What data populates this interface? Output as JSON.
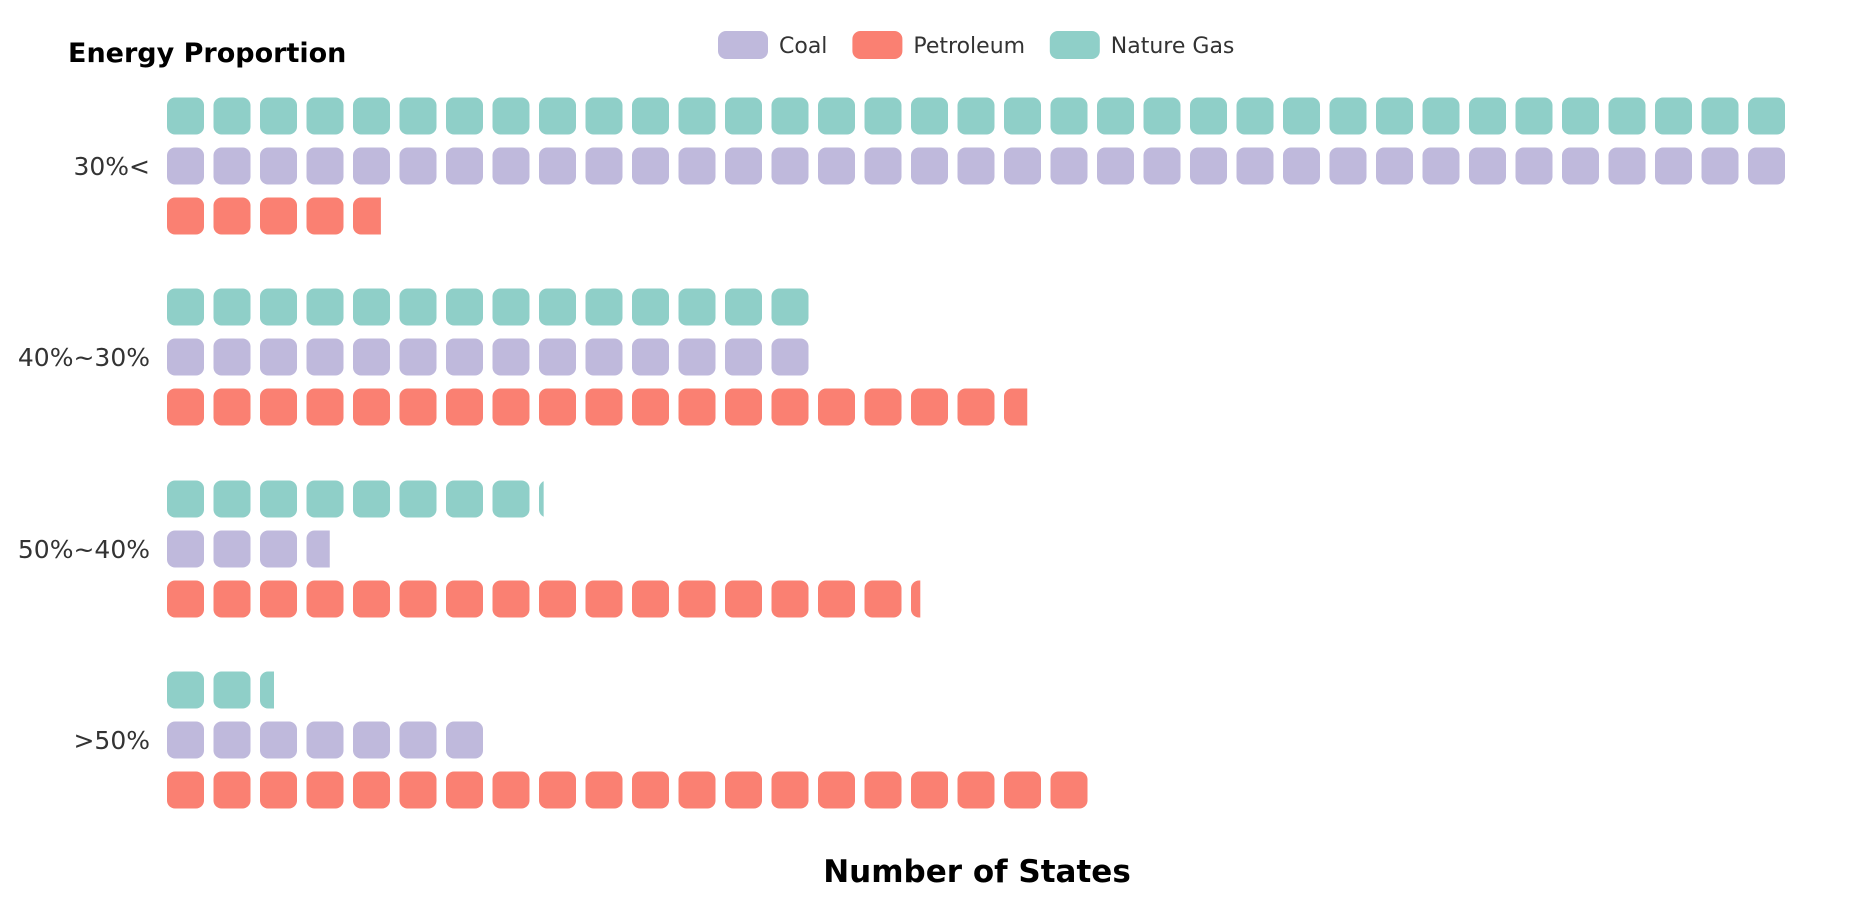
{
  "chart_data": {
    "type": "bar",
    "title": "",
    "ylabel": "Energy Proportion",
    "xlabel": "Number of States",
    "categories": [
      ">50%",
      "50%~40%",
      "40%~30%",
      "30%<"
    ],
    "series": [
      {
        "name": "Coal",
        "color": "#bfb9dc",
        "values": [
          7,
          3.5,
          14,
          35
        ]
      },
      {
        "name": "Petroleum",
        "color": "#fa8072",
        "values": [
          20,
          16.2,
          18.5,
          4.6
        ]
      },
      {
        "name": "Nature Gas",
        "color": "#8fcfc8",
        "values": [
          2.3,
          8.1,
          14,
          35
        ]
      }
    ],
    "legend": {
      "position": "top-center"
    },
    "grid": false
  }
}
